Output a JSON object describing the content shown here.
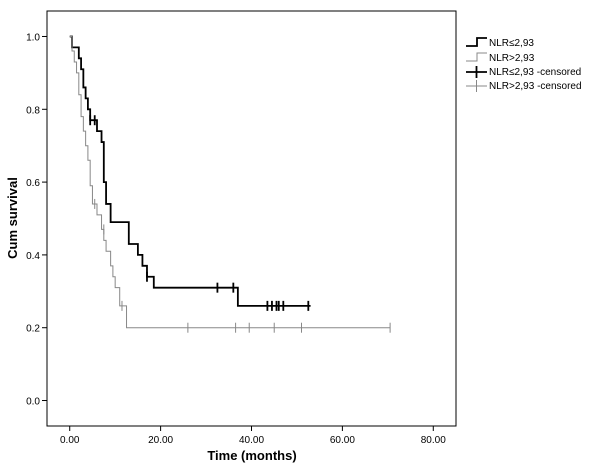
{
  "chart_data": {
    "type": "line",
    "title": "",
    "xlabel": "Time (months)",
    "ylabel": "Cum survival",
    "xlim": [
      -5,
      85
    ],
    "ylim": [
      -0.07,
      1.07
    ],
    "x_ticks": [
      "0.00",
      "20.00",
      "40.00",
      "60.00",
      "80.00"
    ],
    "x_tick_values": [
      0,
      20,
      40,
      60,
      80
    ],
    "y_ticks": [
      "0.0",
      "0.2",
      "0.4",
      "0.6",
      "0.8",
      "1.0"
    ],
    "y_tick_values": [
      0,
      0.2,
      0.4,
      0.6,
      0.8,
      1.0
    ],
    "grid": false,
    "legend_position": "top-right",
    "legend": [
      "NLR≤2,93",
      "NLR>2,93",
      "NLR≤2,93 -censored",
      "NLR>2,93 -censored"
    ],
    "series": [
      {
        "name": "NLR≤2,93",
        "color": "#000000",
        "steps": [
          [
            0,
            1.0
          ],
          [
            0.5,
            0.97
          ],
          [
            2,
            0.94
          ],
          [
            2.5,
            0.91
          ],
          [
            3,
            0.86
          ],
          [
            3.5,
            0.83
          ],
          [
            4,
            0.8
          ],
          [
            4.5,
            0.77
          ],
          [
            6,
            0.74
          ],
          [
            7,
            0.71
          ],
          [
            7.5,
            0.6
          ],
          [
            8,
            0.54
          ],
          [
            9,
            0.49
          ],
          [
            13,
            0.43
          ],
          [
            15,
            0.4
          ],
          [
            16,
            0.37
          ],
          [
            17,
            0.34
          ],
          [
            18.5,
            0.31
          ],
          [
            37,
            0.26
          ],
          [
            53,
            0.26
          ]
        ],
        "censored": [
          [
            4.5,
            0.77
          ],
          [
            5.5,
            0.77
          ],
          [
            17,
            0.34
          ],
          [
            32.5,
            0.31
          ],
          [
            36,
            0.31
          ],
          [
            43.5,
            0.26
          ],
          [
            44.5,
            0.26
          ],
          [
            45.5,
            0.26
          ],
          [
            46,
            0.26
          ],
          [
            47,
            0.26
          ],
          [
            52.5,
            0.26
          ]
        ]
      },
      {
        "name": "NLR>2,93",
        "color": "#888888",
        "steps": [
          [
            0,
            1.0
          ],
          [
            0.5,
            0.96
          ],
          [
            1,
            0.93
          ],
          [
            1.5,
            0.9
          ],
          [
            2,
            0.84
          ],
          [
            2.5,
            0.78
          ],
          [
            3,
            0.74
          ],
          [
            3.5,
            0.7
          ],
          [
            4,
            0.66
          ],
          [
            4.5,
            0.59
          ],
          [
            5,
            0.54
          ],
          [
            6,
            0.51
          ],
          [
            7,
            0.47
          ],
          [
            7.5,
            0.44
          ],
          [
            8,
            0.41
          ],
          [
            9,
            0.37
          ],
          [
            9.5,
            0.34
          ],
          [
            10,
            0.31
          ],
          [
            11,
            0.26
          ],
          [
            12.5,
            0.2
          ],
          [
            70.5,
            0.2
          ]
        ],
        "censored": [
          [
            5.5,
            0.54
          ],
          [
            7.5,
            0.47
          ],
          [
            11.5,
            0.26
          ],
          [
            26,
            0.2
          ],
          [
            36.5,
            0.2
          ],
          [
            39.5,
            0.2
          ],
          [
            45,
            0.2
          ],
          [
            51,
            0.2
          ],
          [
            70.5,
            0.2
          ]
        ]
      }
    ]
  }
}
